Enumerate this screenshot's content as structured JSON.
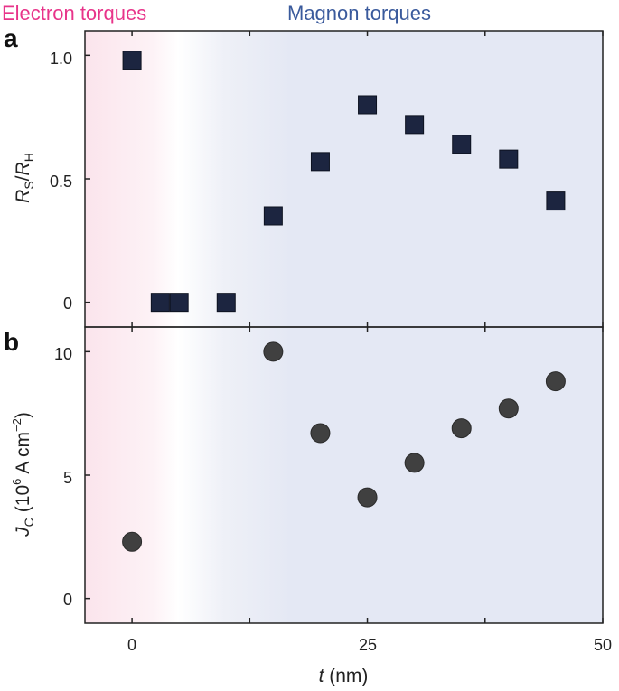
{
  "chart_data": [
    {
      "panel": "a",
      "type": "scatter",
      "marker": "square",
      "color": "#1c2540",
      "x": [
        0,
        3,
        5,
        10,
        15,
        20,
        25,
        30,
        35,
        40,
        45
      ],
      "y": [
        0.98,
        0.0,
        0.0,
        0.0,
        0.35,
        0.57,
        0.8,
        0.72,
        0.64,
        0.58,
        0.41
      ],
      "xlim": [
        -5,
        50
      ],
      "ylim": [
        -0.1,
        1.1
      ],
      "yticks": [
        1.0,
        0.5,
        0
      ],
      "ytick_labels": [
        "1.0",
        "0.5",
        "0"
      ],
      "ylabel": {
        "main": "R",
        "sub1": "S",
        "slash": "/",
        "main2": "R",
        "sub2": "H"
      },
      "grid": false
    },
    {
      "panel": "b",
      "type": "scatter",
      "marker": "circle",
      "color": "#404040",
      "x": [
        0,
        15,
        20,
        25,
        30,
        35,
        40,
        45
      ],
      "y": [
        2.3,
        10.0,
        6.7,
        4.1,
        5.5,
        6.9,
        7.7,
        8.8
      ],
      "xlim": [
        -5,
        50
      ],
      "ylim": [
        -1,
        11
      ],
      "yticks": [
        10,
        5,
        0
      ],
      "ytick_labels": [
        "10",
        "5",
        "0"
      ],
      "ylabel": {
        "main": "J",
        "sub": "C",
        "open": "(10",
        "exp": "6",
        "unit": "A cm",
        "exp2": "−2",
        "close": ")"
      },
      "grid": false
    }
  ],
  "shared": {
    "xticks": [
      0,
      25,
      50
    ],
    "xtick_labels": [
      "0",
      "25",
      "50"
    ],
    "minor_xticks": [
      12.5,
      37.5
    ],
    "xlabel_var": "t",
    "xlabel_unit": "(nm)",
    "regions": [
      {
        "label": "Electron torques",
        "color": "#e8348a",
        "fill": "#fbe4ec"
      },
      {
        "label": "Magnon torques",
        "color": "#3a5a9c",
        "fill": "#e4e8f4"
      }
    ],
    "panel_letters": [
      "a",
      "b"
    ]
  }
}
